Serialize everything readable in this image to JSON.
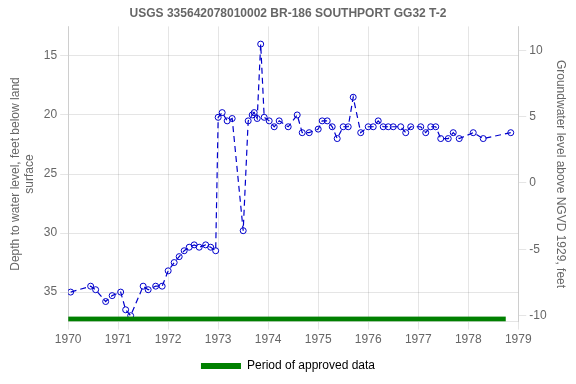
{
  "chart_data": {
    "type": "line",
    "title": "USGS 335642078010002 BR-186 SOUTHPORT GG32 T-2",
    "ylabel": "Depth to water level, feet below land\nsurface",
    "y2label": "Groundwater level above NGVD 1929, feet",
    "x": [
      1970.05,
      1970.45,
      1970.55,
      1970.75,
      1970.88,
      1971.05,
      1971.15,
      1971.25,
      1971.5,
      1971.6,
      1971.75,
      1971.88,
      1972.0,
      1972.12,
      1972.22,
      1972.32,
      1972.42,
      1972.52,
      1972.62,
      1972.75,
      1972.85,
      1972.95,
      1973.0,
      1973.08,
      1973.18,
      1973.28,
      1973.5,
      1973.6,
      1973.68,
      1973.72,
      1973.78,
      1973.85,
      1973.92,
      1974.02,
      1974.12,
      1974.22,
      1974.4,
      1974.58,
      1974.68,
      1974.82,
      1975.0,
      1975.08,
      1975.18,
      1975.28,
      1975.38,
      1975.5,
      1975.6,
      1975.7,
      1975.85,
      1976.0,
      1976.1,
      1976.2,
      1976.3,
      1976.4,
      1976.5,
      1976.65,
      1976.75,
      1976.85,
      1977.05,
      1977.15,
      1977.25,
      1977.35,
      1977.45,
      1977.6,
      1977.7,
      1977.82,
      1978.1,
      1978.3,
      1978.85
    ],
    "series": [
      {
        "color": "#0000cc",
        "marker": "circle",
        "line_style": "dashed",
        "values": [
          35.0,
          34.5,
          34.8,
          35.8,
          35.3,
          35.0,
          36.5,
          37.0,
          34.5,
          34.8,
          34.5,
          34.5,
          33.2,
          32.5,
          32.0,
          31.5,
          31.2,
          31.0,
          31.2,
          31.0,
          31.2,
          31.5,
          20.2,
          19.8,
          20.5,
          20.3,
          29.8,
          20.5,
          20.0,
          19.8,
          20.3,
          14.0,
          20.2,
          20.5,
          21.0,
          20.5,
          21.0,
          20.0,
          21.5,
          21.5,
          21.2,
          20.5,
          20.5,
          21.0,
          22.0,
          21.0,
          21.0,
          18.5,
          21.5,
          21.0,
          21.0,
          20.5,
          21.0,
          21.0,
          21.0,
          21.0,
          21.5,
          21.0,
          21.0,
          21.5,
          21.0,
          21.0,
          22.0,
          22.0,
          21.5,
          22.0,
          21.5,
          22.0,
          21.5
        ]
      }
    ],
    "periods": [
      {
        "name": "Period of approved data",
        "color": "#008000",
        "x": [
          1970.0,
          1978.75
        ]
      }
    ],
    "xlim": [
      1970,
      1979
    ],
    "xticks": [
      1970,
      1971,
      1972,
      1973,
      1974,
      1975,
      1976,
      1977,
      1978,
      1979
    ],
    "ylim": [
      37.5,
      12.5
    ],
    "yticks": [
      15,
      20,
      25,
      30,
      35
    ],
    "y2lim": [
      -10.45,
      11.8
    ],
    "y2ticks": [
      -10,
      -5,
      0,
      5,
      10
    ],
    "grid": true,
    "legend": "bottom"
  }
}
